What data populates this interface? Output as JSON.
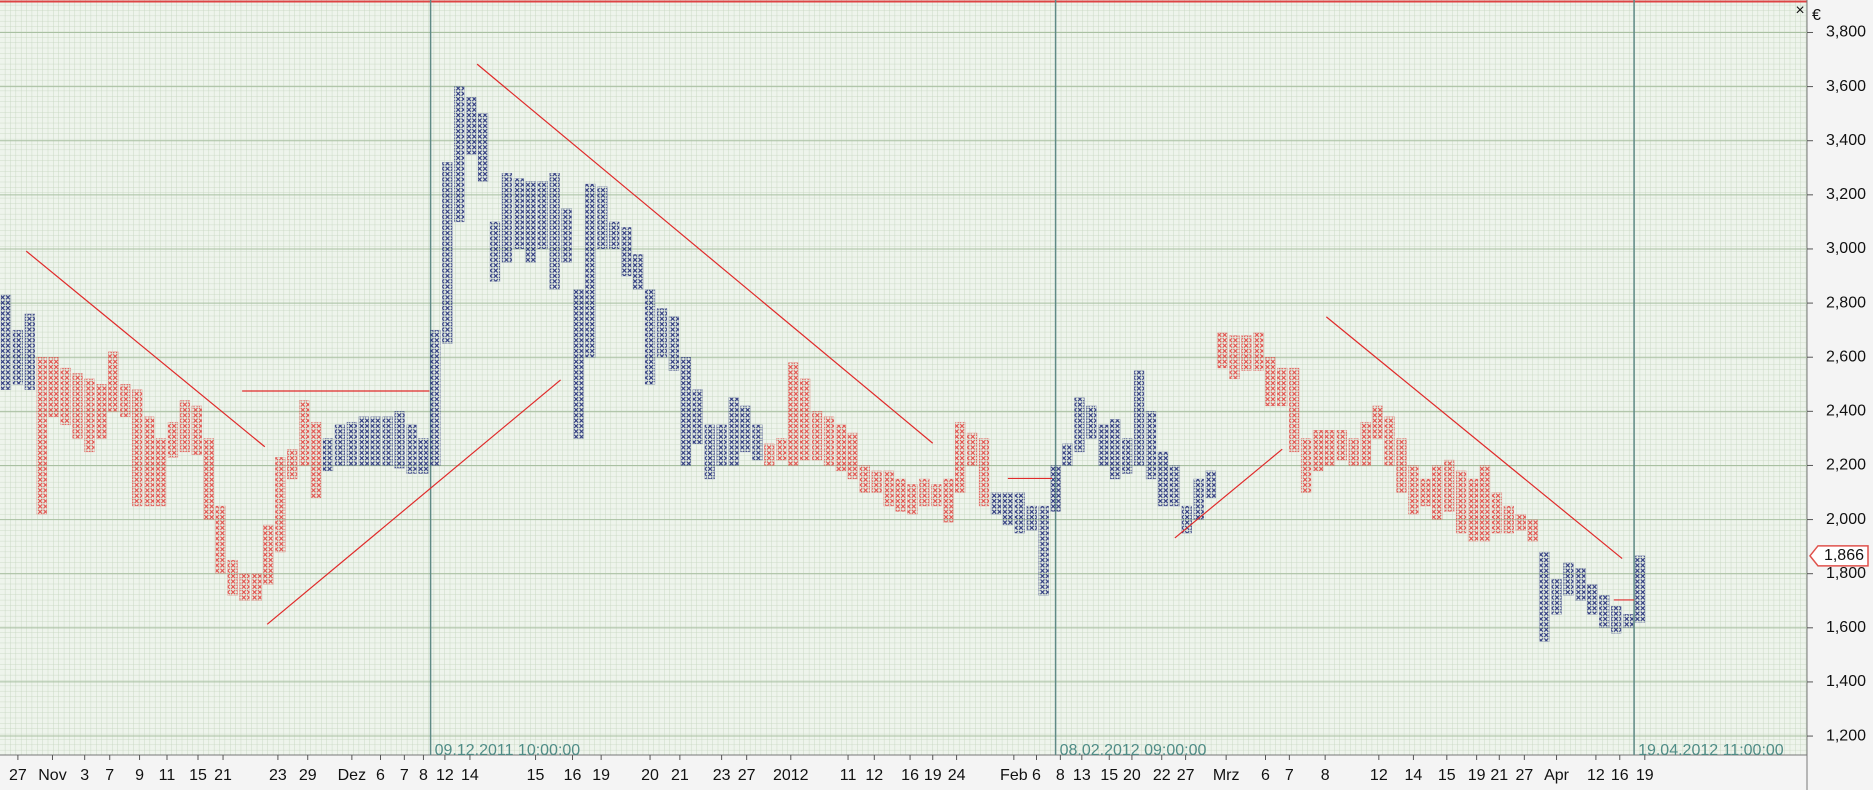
{
  "chart_data": {
    "type": "point-and-figure",
    "currency": "€",
    "xlim": [
      0,
      138
    ],
    "ylim": [
      1130,
      3920
    ],
    "yticks": [
      {
        "value": 1200,
        "label": "1,200"
      },
      {
        "value": 1400,
        "label": "1,400"
      },
      {
        "value": 1600,
        "label": "1,600"
      },
      {
        "value": 1800,
        "label": "1,800"
      },
      {
        "value": 2000,
        "label": "2,000"
      },
      {
        "value": 2200,
        "label": "2,200"
      },
      {
        "value": 2400,
        "label": "2,400"
      },
      {
        "value": 2600,
        "label": "2,600"
      },
      {
        "value": 2800,
        "label": "2,800"
      },
      {
        "value": 3000,
        "label": "3,000"
      },
      {
        "value": 3200,
        "label": "3,200"
      },
      {
        "value": 3400,
        "label": "3,400"
      },
      {
        "value": 3600,
        "label": "3,600"
      },
      {
        "value": 3800,
        "label": "3,800"
      }
    ],
    "grid": true,
    "last_price": {
      "value": 1866,
      "label": "1,866"
    },
    "xticks": [
      {
        "value": 1.5,
        "label": "27"
      },
      {
        "value": 4.4,
        "label": "Nov"
      },
      {
        "value": 7.1,
        "label": "3"
      },
      {
        "value": 9.2,
        "label": "7"
      },
      {
        "value": 11.7,
        "label": "9"
      },
      {
        "value": 14.0,
        "label": "11"
      },
      {
        "value": 16.6,
        "label": "15"
      },
      {
        "value": 18.7,
        "label": "21"
      },
      {
        "value": 23.3,
        "label": "23"
      },
      {
        "value": 25.8,
        "label": "29"
      },
      {
        "value": 29.5,
        "label": "Dez"
      },
      {
        "value": 31.9,
        "label": "6"
      },
      {
        "value": 33.9,
        "label": "7"
      },
      {
        "value": 35.5,
        "label": "8"
      },
      {
        "value": 37.3,
        "label": "12"
      },
      {
        "value": 39.4,
        "label": "14"
      },
      {
        "value": 44.9,
        "label": "15"
      },
      {
        "value": 48.0,
        "label": "16"
      },
      {
        "value": 50.4,
        "label": "19"
      },
      {
        "value": 54.5,
        "label": "20"
      },
      {
        "value": 57.0,
        "label": "21"
      },
      {
        "value": 60.5,
        "label": "23"
      },
      {
        "value": 62.6,
        "label": "27"
      },
      {
        "value": 66.3,
        "label": "2012"
      },
      {
        "value": 71.1,
        "label": "11"
      },
      {
        "value": 73.3,
        "label": "12"
      },
      {
        "value": 76.3,
        "label": "16"
      },
      {
        "value": 78.2,
        "label": "19"
      },
      {
        "value": 80.2,
        "label": "24"
      },
      {
        "value": 85.0,
        "label": "Feb"
      },
      {
        "value": 86.9,
        "label": "6"
      },
      {
        "value": 88.9,
        "label": "8"
      },
      {
        "value": 90.7,
        "label": "13"
      },
      {
        "value": 93.0,
        "label": "15"
      },
      {
        "value": 94.9,
        "label": "20"
      },
      {
        "value": 97.4,
        "label": "22"
      },
      {
        "value": 99.4,
        "label": "27"
      },
      {
        "value": 102.8,
        "label": "Mrz"
      },
      {
        "value": 106.1,
        "label": "6"
      },
      {
        "value": 108.1,
        "label": "7"
      },
      {
        "value": 111.1,
        "label": "8"
      },
      {
        "value": 115.6,
        "label": "12"
      },
      {
        "value": 118.5,
        "label": "14"
      },
      {
        "value": 121.3,
        "label": "15"
      },
      {
        "value": 123.8,
        "label": "19"
      },
      {
        "value": 125.7,
        "label": "21"
      },
      {
        "value": 127.8,
        "label": "27"
      },
      {
        "value": 130.5,
        "label": "Apr"
      },
      {
        "value": 133.8,
        "label": "12"
      },
      {
        "value": 135.8,
        "label": "16"
      },
      {
        "value": 137.9,
        "label": "19"
      }
    ],
    "markers": [
      {
        "value": 36.1,
        "label": "09.12.2011 10:00:00"
      },
      {
        "value": 88.5,
        "label": "08.02.2012 09:00:00"
      },
      {
        "value": 137.0,
        "label": "19.04.2012 11:00:00"
      }
    ],
    "segments": [
      {
        "color": "#2e3a7e",
        "lows": [
          2480,
          2500,
          2480
        ],
        "highs": [
          2830,
          2700,
          2760
        ]
      },
      {
        "color": "#e0524c",
        "lows": [
          2020,
          2380,
          2350,
          2300,
          2250,
          2300,
          2400,
          2380,
          2050,
          2050,
          2050,
          2230,
          2250,
          2240,
          2000,
          1800,
          1720,
          1700,
          1700,
          1760,
          1880,
          2150,
          2200,
          2080
        ],
        "highs": [
          2600,
          2600,
          2560,
          2540,
          2520,
          2500,
          2620,
          2500,
          2480,
          2380,
          2300,
          2360,
          2440,
          2420,
          2300,
          2050,
          1850,
          1800,
          1800,
          1980,
          2230,
          2260,
          2440,
          2360
        ]
      },
      {
        "color": "#2e3a7e",
        "lows": [
          2180,
          2200,
          2200,
          2200,
          2200,
          2200,
          2190,
          2170,
          2170,
          2200,
          2650,
          3100,
          3350,
          3250,
          2880,
          2950,
          3000,
          2950,
          3000,
          2850,
          2950,
          2300,
          2600,
          3000,
          3000,
          2900,
          2850,
          2500,
          2600,
          2550,
          2200,
          2280,
          2150,
          2200,
          2200,
          2250,
          2220
        ],
        "highs": [
          2300,
          2350,
          2360,
          2380,
          2380,
          2380,
          2400,
          2350,
          2300,
          2700,
          3320,
          3600,
          3560,
          3500,
          3100,
          3280,
          3260,
          3250,
          3250,
          3280,
          3150,
          2850,
          3240,
          3230,
          3100,
          3080,
          2980,
          2850,
          2780,
          2750,
          2600,
          2480,
          2350,
          2350,
          2450,
          2420,
          2350
        ]
      },
      {
        "color": "#e0524c",
        "lows": [
          2200,
          2220,
          2200,
          2220,
          2220,
          2200,
          2180,
          2150,
          2100,
          2100,
          2050,
          2030,
          2020,
          2050,
          2050,
          1990,
          2100,
          2200,
          2050
        ],
        "highs": [
          2280,
          2300,
          2580,
          2520,
          2400,
          2380,
          2350,
          2320,
          2200,
          2180,
          2180,
          2150,
          2130,
          2150,
          2130,
          2150,
          2360,
          2320,
          2300
        ]
      },
      {
        "color": "#2e3a7e",
        "lows": [
          2020,
          1980,
          1950,
          1960,
          1720,
          2030,
          2200,
          2250,
          2300,
          2200,
          2150,
          2170,
          2200,
          2150,
          2050,
          2050,
          1950,
          2000,
          2080
        ],
        "highs": [
          2100,
          2100,
          2100,
          2050,
          2050,
          2200,
          2280,
          2450,
          2420,
          2350,
          2370,
          2300,
          2550,
          2400,
          2250,
          2200,
          2050,
          2150,
          2180
        ]
      },
      {
        "color": "#e0524c",
        "lows": [
          2560,
          2520,
          2550,
          2550,
          2420,
          2420,
          2250,
          2100,
          2180,
          2200,
          2220,
          2200,
          2200,
          2300,
          2200,
          2100,
          2020,
          2050,
          2000,
          2030,
          1950,
          1920,
          1920,
          1950,
          1950,
          1960,
          1920
        ],
        "highs": [
          2690,
          2680,
          2680,
          2690,
          2600,
          2560,
          2560,
          2300,
          2330,
          2330,
          2330,
          2300,
          2360,
          2420,
          2380,
          2300,
          2200,
          2150,
          2200,
          2220,
          2180,
          2150,
          2200,
          2100,
          2050,
          2020,
          2000
        ]
      },
      {
        "color": "#2e3a7e",
        "lows": [
          1550,
          1650,
          1720,
          1700,
          1650,
          1600,
          1580,
          1600,
          1620
        ],
        "highs": [
          1880,
          1780,
          1840,
          1820,
          1760,
          1720,
          1680,
          1650,
          1866
        ]
      }
    ],
    "trend_lines": [
      {
        "x1": 2.2,
        "y1": 2992,
        "x2": 22.2,
        "y2": 2269
      },
      {
        "x1": 20.3,
        "y1": 2475,
        "x2": 36,
        "y2": 2475
      },
      {
        "x1": 22.4,
        "y1": 1613,
        "x2": 47,
        "y2": 2516
      },
      {
        "x1": 40,
        "y1": 3683,
        "x2": 78.2,
        "y2": 2282
      },
      {
        "x1": 84.5,
        "y1": 2152,
        "x2": 88.2,
        "y2": 2152
      },
      {
        "x1": 98.5,
        "y1": 1932,
        "x2": 107.5,
        "y2": 2260
      },
      {
        "x1": 111.2,
        "y1": 2749,
        "x2": 136,
        "y2": 1856
      },
      {
        "x1": 135.3,
        "y1": 1703,
        "x2": 137,
        "y2": 1703
      }
    ]
  }
}
